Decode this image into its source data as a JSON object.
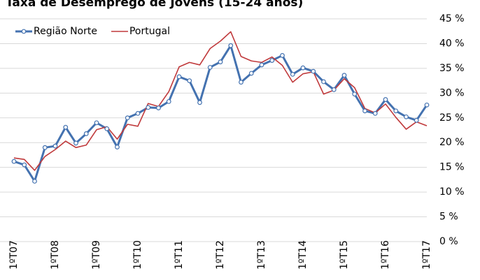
{
  "chart_data": {
    "type": "line",
    "title": "Taxa de Desemprego de Jovens (15-24 anos)",
    "categories": [
      "1ºT07",
      null,
      null,
      null,
      "1ºT08",
      null,
      null,
      null,
      "1ºT09",
      null,
      null,
      null,
      "1ºT10",
      null,
      null,
      null,
      "1ºT11",
      null,
      null,
      null,
      "1ºT12",
      null,
      null,
      null,
      "1ºT13",
      null,
      null,
      null,
      "1ºT14",
      null,
      null,
      null,
      "1ºT15",
      null,
      null,
      null,
      "1ºT16",
      null,
      null,
      null,
      "1ºT17"
    ],
    "series": [
      {
        "name": "Região Norte",
        "color": "#4472b0",
        "marker": true,
        "values": [
          16.2,
          15.5,
          12.2,
          19,
          19.3,
          23.1,
          19.9,
          21.8,
          24,
          22.8,
          19.1,
          25,
          25.9,
          27.1,
          27,
          28.3,
          33.3,
          32.5,
          28.1,
          35.2,
          36.3,
          39.6,
          32.2,
          34,
          35.7,
          36.6,
          37.6,
          33.8,
          35.1,
          34.4,
          32.3,
          30.7,
          33.6,
          29.8,
          26.4,
          25.9,
          28.7,
          26.4,
          25.2,
          24.5,
          27.6
        ]
      },
      {
        "name": "Portugal",
        "color": "#c0393b",
        "marker": false,
        "values": [
          16.9,
          16.6,
          14.4,
          17.2,
          18.6,
          20.3,
          19,
          19.5,
          22.6,
          23.2,
          20.7,
          23.7,
          23.3,
          27.9,
          27.3,
          30.3,
          35.3,
          36.2,
          35.7,
          39,
          40.5,
          42.4,
          37.4,
          36.5,
          36.2,
          37.3,
          35.6,
          32.2,
          33.9,
          34.3,
          29.8,
          30.6,
          32.9,
          31.1,
          26.9,
          26,
          27.8,
          25.1,
          22.7,
          24.2,
          23.4
        ]
      }
    ],
    "ylim": [
      0,
      45
    ],
    "yticks": [
      {
        "value": 0,
        "label": "0 %"
      },
      {
        "value": 5,
        "label": "5 %"
      },
      {
        "value": 10,
        "label": "10 %"
      },
      {
        "value": 15,
        "label": "15 %"
      },
      {
        "value": 20,
        "label": "20 %"
      },
      {
        "value": 25,
        "label": "25 %"
      },
      {
        "value": 30,
        "label": "30 %"
      },
      {
        "value": 35,
        "label": "35 %"
      },
      {
        "value": 40,
        "label": "40 %"
      },
      {
        "value": 45,
        "label": "45 %"
      }
    ],
    "grid": true,
    "legend": "top-left"
  }
}
